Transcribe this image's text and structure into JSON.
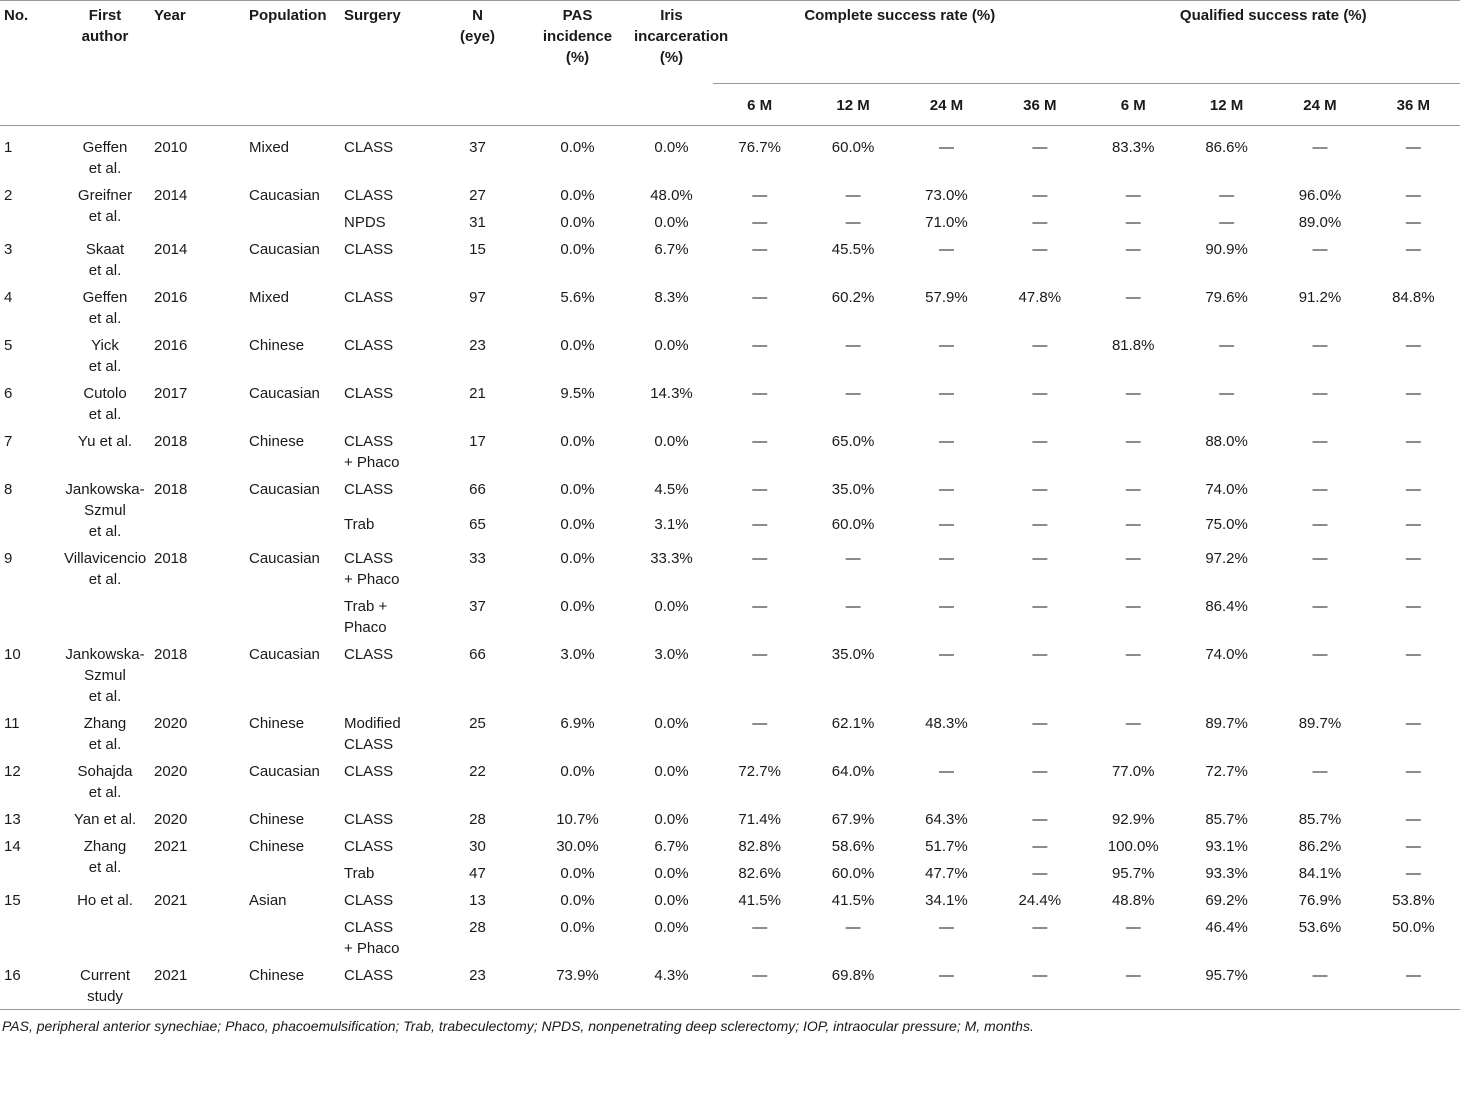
{
  "header": {
    "no": "No.",
    "first_author": "First\nauthor",
    "year": "Year",
    "population": "Population",
    "surgery": "Surgery",
    "n": "N\n(eye)",
    "pas": "PAS\nincidence\n(%)",
    "iris": "Iris\nincarceration\n(%)",
    "complete": "Complete success rate (%)",
    "qualified": "Qualified success rate (%)",
    "months": [
      "6 M",
      "12 M",
      "24 M",
      "36 M"
    ]
  },
  "studies": [
    {
      "no": "1",
      "author": "Geffen\net al.",
      "year": "2010",
      "population": "Mixed",
      "arms": [
        {
          "surgery": "CLASS",
          "n": 37,
          "pas": "0.0%",
          "iris": "0.0%",
          "complete": [
            "76.7%",
            "60.0%",
            "—",
            "—"
          ],
          "qualified": [
            "83.3%",
            "86.6%",
            "—",
            "—"
          ]
        }
      ]
    },
    {
      "no": "2",
      "author": "Greifner\net al.",
      "year": "2014",
      "population": "Caucasian",
      "arms": [
        {
          "surgery": "CLASS",
          "n": 27,
          "pas": "0.0%",
          "iris": "48.0%",
          "complete": [
            "—",
            "—",
            "73.0%",
            "—"
          ],
          "qualified": [
            "—",
            "—",
            "96.0%",
            "—"
          ]
        },
        {
          "surgery": "NPDS",
          "n": 31,
          "pas": "0.0%",
          "iris": "0.0%",
          "complete": [
            "—",
            "—",
            "71.0%",
            "—"
          ],
          "qualified": [
            "—",
            "—",
            "89.0%",
            "—"
          ]
        }
      ]
    },
    {
      "no": "3",
      "author": "Skaat\net al.",
      "year": "2014",
      "population": "Caucasian",
      "arms": [
        {
          "surgery": "CLASS",
          "n": 15,
          "pas": "0.0%",
          "iris": "6.7%",
          "complete": [
            "—",
            "45.5%",
            "—",
            "—"
          ],
          "qualified": [
            "—",
            "90.9%",
            "—",
            "—"
          ]
        }
      ]
    },
    {
      "no": "4",
      "author": "Geffen\net al.",
      "year": "2016",
      "population": "Mixed",
      "arms": [
        {
          "surgery": "CLASS",
          "n": 97,
          "pas": "5.6%",
          "iris": "8.3%",
          "complete": [
            "—",
            "60.2%",
            "57.9%",
            "47.8%"
          ],
          "qualified": [
            "—",
            "79.6%",
            "91.2%",
            "84.8%"
          ]
        }
      ]
    },
    {
      "no": "5",
      "author": "Yick\net al.",
      "year": "2016",
      "population": "Chinese",
      "arms": [
        {
          "surgery": "CLASS",
          "n": 23,
          "pas": "0.0%",
          "iris": "0.0%",
          "complete": [
            "—",
            "—",
            "—",
            "—"
          ],
          "qualified": [
            "81.8%",
            "—",
            "—",
            "—"
          ]
        }
      ]
    },
    {
      "no": "6",
      "author": "Cutolo\net al.",
      "year": "2017",
      "population": "Caucasian",
      "arms": [
        {
          "surgery": "CLASS",
          "n": 21,
          "pas": "9.5%",
          "iris": "14.3%",
          "complete": [
            "—",
            "—",
            "—",
            "—"
          ],
          "qualified": [
            "—",
            "—",
            "—",
            "—"
          ]
        }
      ]
    },
    {
      "no": "7",
      "author": "Yu et al.",
      "year": "2018",
      "population": "Chinese",
      "arms": [
        {
          "surgery": "CLASS\n+ Phaco",
          "n": 17,
          "pas": "0.0%",
          "iris": "0.0%",
          "complete": [
            "—",
            "65.0%",
            "—",
            "—"
          ],
          "qualified": [
            "—",
            "88.0%",
            "—",
            "—"
          ]
        }
      ]
    },
    {
      "no": "8",
      "author": "Jankowska-\nSzmul\net al.",
      "year": "2018",
      "population": "Caucasian",
      "arms": [
        {
          "surgery": "CLASS",
          "n": 66,
          "pas": "0.0%",
          "iris": "4.5%",
          "complete": [
            "—",
            "35.0%",
            "—",
            "—"
          ],
          "qualified": [
            "—",
            "74.0%",
            "—",
            "—"
          ]
        },
        {
          "surgery": "Trab",
          "n": 65,
          "pas": "0.0%",
          "iris": "3.1%",
          "complete": [
            "—",
            "60.0%",
            "—",
            "—"
          ],
          "qualified": [
            "—",
            "75.0%",
            "—",
            "—"
          ]
        }
      ]
    },
    {
      "no": "9",
      "author": "Villavicencio\net al.",
      "year": "2018",
      "population": "Caucasian",
      "arms": [
        {
          "surgery": "CLASS\n+ Phaco",
          "n": 33,
          "pas": "0.0%",
          "iris": "33.3%",
          "complete": [
            "—",
            "—",
            "—",
            "—"
          ],
          "qualified": [
            "—",
            "97.2%",
            "—",
            "—"
          ]
        },
        {
          "surgery": "Trab +\nPhaco",
          "n": 37,
          "pas": "0.0%",
          "iris": "0.0%",
          "complete": [
            "—",
            "—",
            "—",
            "—"
          ],
          "qualified": [
            "—",
            "86.4%",
            "—",
            "—"
          ]
        }
      ]
    },
    {
      "no": "10",
      "author": "Jankowska-\nSzmul\net al.",
      "year": "2018",
      "population": "Caucasian",
      "arms": [
        {
          "surgery": "CLASS",
          "n": 66,
          "pas": "3.0%",
          "iris": "3.0%",
          "complete": [
            "—",
            "35.0%",
            "—",
            "—"
          ],
          "qualified": [
            "—",
            "74.0%",
            "—",
            "—"
          ]
        }
      ]
    },
    {
      "no": "11",
      "author": "Zhang\net al.",
      "year": "2020",
      "population": "Chinese",
      "arms": [
        {
          "surgery": "Modified\nCLASS",
          "n": 25,
          "pas": "6.9%",
          "iris": "0.0%",
          "complete": [
            "—",
            "62.1%",
            "48.3%",
            "—"
          ],
          "qualified": [
            "—",
            "89.7%",
            "89.7%",
            "—"
          ]
        }
      ]
    },
    {
      "no": "12",
      "author": "Sohajda\net al.",
      "year": "2020",
      "population": "Caucasian",
      "arms": [
        {
          "surgery": "CLASS",
          "n": 22,
          "pas": "0.0%",
          "iris": "0.0%",
          "complete": [
            "72.7%",
            "64.0%",
            "—",
            "—"
          ],
          "qualified": [
            "77.0%",
            "72.7%",
            "—",
            "—"
          ]
        }
      ]
    },
    {
      "no": "13",
      "author": "Yan et al.",
      "year": "2020",
      "population": "Chinese",
      "arms": [
        {
          "surgery": "CLASS",
          "n": 28,
          "pas": "10.7%",
          "iris": "0.0%",
          "complete": [
            "71.4%",
            "67.9%",
            "64.3%",
            "—"
          ],
          "qualified": [
            "92.9%",
            "85.7%",
            "85.7%",
            "—"
          ]
        }
      ]
    },
    {
      "no": "14",
      "author": "Zhang\net al.",
      "year": "2021",
      "population": "Chinese",
      "arms": [
        {
          "surgery": "CLASS",
          "n": 30,
          "pas": "30.0%",
          "iris": "6.7%",
          "complete": [
            "82.8%",
            "58.6%",
            "51.7%",
            "—"
          ],
          "qualified": [
            "100.0%",
            "93.1%",
            "86.2%",
            "—"
          ]
        },
        {
          "surgery": "Trab",
          "n": 47,
          "pas": "0.0%",
          "iris": "0.0%",
          "complete": [
            "82.6%",
            "60.0%",
            "47.7%",
            "—"
          ],
          "qualified": [
            "95.7%",
            "93.3%",
            "84.1%",
            "—"
          ]
        }
      ]
    },
    {
      "no": "15",
      "author": "Ho et al.",
      "year": "2021",
      "population": "Asian",
      "arms": [
        {
          "surgery": "CLASS",
          "n": 13,
          "pas": "0.0%",
          "iris": "0.0%",
          "complete": [
            "41.5%",
            "41.5%",
            "34.1%",
            "24.4%"
          ],
          "qualified": [
            "48.8%",
            "69.2%",
            "76.9%",
            "53.8%"
          ]
        },
        {
          "surgery": "CLASS\n+ Phaco",
          "n": 28,
          "pas": "0.0%",
          "iris": "0.0%",
          "complete": [
            "—",
            "—",
            "—",
            "—"
          ],
          "qualified": [
            "—",
            "46.4%",
            "53.6%",
            "50.0%"
          ]
        }
      ]
    },
    {
      "no": "16",
      "author": "Current\nstudy",
      "year": "2021",
      "population": "Chinese",
      "arms": [
        {
          "surgery": "CLASS",
          "n": 23,
          "pas": "73.9%",
          "iris": "4.3%",
          "complete": [
            "—",
            "69.8%",
            "—",
            "—"
          ],
          "qualified": [
            "—",
            "95.7%",
            "—",
            "—"
          ]
        }
      ]
    }
  ],
  "footnote": "PAS, peripheral anterior synechiae; Phaco, phacoemulsification; Trab, trabeculectomy; NPDS, nonpenetrating deep sclerectomy; IOP, intraocular pressure; M, months."
}
